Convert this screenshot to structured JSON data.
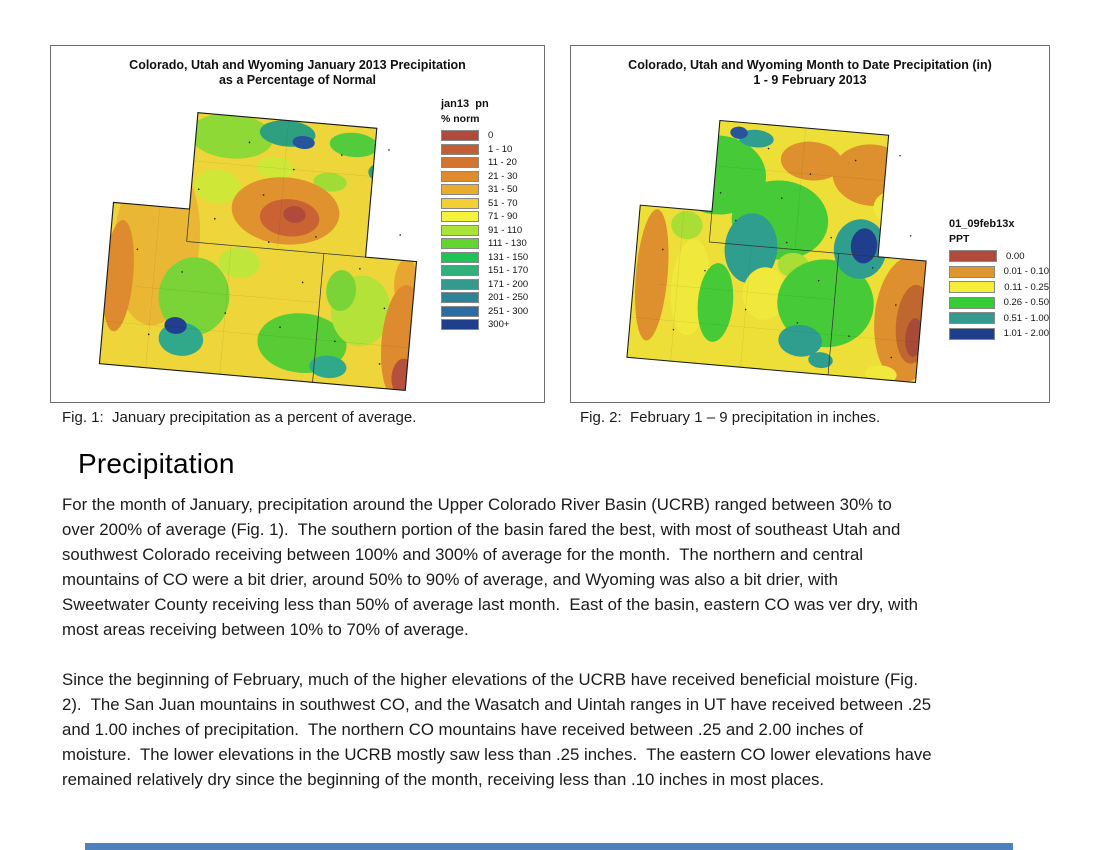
{
  "page": {
    "background": "#ffffff",
    "footer_bar_color": "#4f81bd"
  },
  "figures": [
    {
      "title_line1": "Colorado, Utah and Wyoming January 2013 Precipitation",
      "title_line2": "as a Percentage of Normal",
      "legend_title": "jan13  pn",
      "legend_subtitle": "% norm",
      "legend_items": [
        {
          "label": "0",
          "color": "#b04b3c"
        },
        {
          "label": "1 - 10",
          "color": "#c25e33"
        },
        {
          "label": "11 - 20",
          "color": "#d4752e"
        },
        {
          "label": "21 - 30",
          "color": "#e08c2d"
        },
        {
          "label": "31 - 50",
          "color": "#eaac2e"
        },
        {
          "label": "51 - 70",
          "color": "#f2cf33"
        },
        {
          "label": "71 - 90",
          "color": "#f4f23c"
        },
        {
          "label": "91 - 110",
          "color": "#abe437"
        },
        {
          "label": "111 - 130",
          "color": "#62d52f"
        },
        {
          "label": "131 - 150",
          "color": "#1fc457"
        },
        {
          "label": "151 - 170",
          "color": "#2fb07c"
        },
        {
          "label": "171 - 200",
          "color": "#349a8e"
        },
        {
          "label": "201 - 250",
          "color": "#2d8496"
        },
        {
          "label": "251 - 300",
          "color": "#2a6da4"
        },
        {
          "label": "300+",
          "color": "#1f3e8c"
        }
      ],
      "caption": "Fig. 1:  January precipitation as a percent of average."
    },
    {
      "title_line1": "Colorado, Utah and Wyoming Month to Date Precipitation (in)",
      "title_line2": "1 - 9 February 2013",
      "legend_title": "01_09feb13x",
      "legend_subtitle": "PPT",
      "legend_items": [
        {
          "label": "0.00",
          "color": "#b04b3c"
        },
        {
          "label": "0.01 - 0.10",
          "color": "#e0962e"
        },
        {
          "label": "0.11 - 0.25",
          "color": "#f4ee38"
        },
        {
          "label": "0.26 - 0.50",
          "color": "#35cc35"
        },
        {
          "label": "0.51 - 1.00",
          "color": "#349a8e"
        },
        {
          "label": "1.01 - 2.00",
          "color": "#1f3e8c"
        }
      ],
      "caption": "Fig. 2:  February 1 – 9 precipitation in inches."
    }
  ],
  "article": {
    "heading": "Precipitation",
    "paragraph1_lines": [
      "For the month of January, precipitation around the Upper Colorado River Basin (UCRB) ranged between 30% to",
      "over 200% of average (Fig. 1).  The southern portion of the basin fared the best, with most of southeast Utah and",
      "southwest Colorado receiving between 100% and 300% of average for the month.  The northern and central",
      "mountains of CO were a bit drier, around 50% to 90% of average, and Wyoming was also a bit drier, with",
      "Sweetwater County receiving less than 50% of average last month.  East of the basin, eastern CO was ver dry, with",
      "most areas receiving between 10% to 70% of average."
    ],
    "paragraph2_lines": [
      "Since the beginning of February, much of the higher elevations of the UCRB have received beneficial moisture (Fig.",
      "2).  The San Juan mountains in southwest CO, and the Wasatch and Uintah ranges in UT have received between .25",
      "and 1.00 inches of precipitation.  The northern CO mountains have received between .25 and 2.00 inches of",
      "moisture.  The lower elevations in the UCRB mostly saw less than .25 inches.  The eastern CO lower elevations have",
      "remained relatively dry since the beginning of the month, receiving less than .10 inches in most places."
    ]
  }
}
